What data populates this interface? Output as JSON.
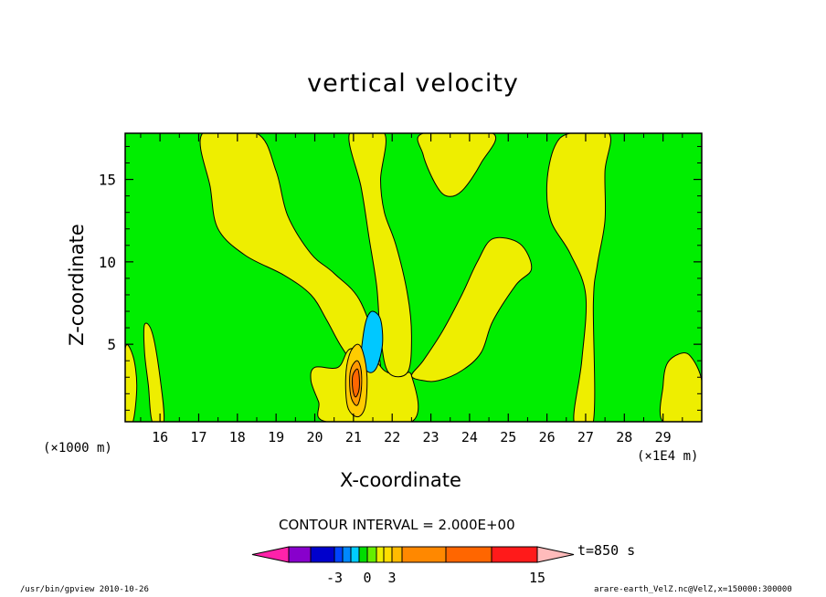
{
  "chart_data": {
    "type": "heatmap",
    "title": "vertical velocity",
    "xlabel": "X-coordinate",
    "ylabel": "Z-coordinate",
    "x_unit_left": "(×1000 m)",
    "x_unit_right": "(×1E4 m)",
    "xlim": [
      15.1,
      30
    ],
    "ylim": [
      0.3,
      17.8
    ],
    "x_ticks": [
      16,
      17,
      18,
      19,
      20,
      21,
      22,
      23,
      24,
      25,
      26,
      27,
      28,
      29
    ],
    "x_tick_labels": [
      "16",
      "17",
      "18",
      "19",
      "20",
      "21",
      "22",
      "23",
      "24",
      "25",
      "26",
      "27",
      "28",
      "29"
    ],
    "y_ticks": [
      5,
      10,
      15
    ],
    "y_tick_labels": [
      "5",
      "10",
      "15"
    ],
    "background_level_color": "#00ee00",
    "regions": [
      {
        "level": "0 to 2",
        "color": "#eeee00",
        "points": [
          [
            17.1,
            17.8
          ],
          [
            18.5,
            17.8
          ],
          [
            19,
            15.5
          ],
          [
            19.3,
            12.8
          ],
          [
            19.9,
            10.5
          ],
          [
            20.5,
            9.3
          ],
          [
            21.2,
            7.5
          ],
          [
            21.7,
            3.6
          ],
          [
            21.2,
            3.3
          ],
          [
            20.7,
            4.8
          ],
          [
            20.3,
            6.5
          ],
          [
            19.9,
            8
          ],
          [
            19.2,
            9.2
          ],
          [
            18.2,
            10.4
          ],
          [
            17.5,
            12
          ],
          [
            17.3,
            14.5
          ]
        ]
      },
      {
        "level": "0 to 2",
        "color": "#eeee00",
        "points": [
          [
            20,
            3.6
          ],
          [
            20.6,
            3.6
          ],
          [
            20.9,
            4.7
          ],
          [
            21.4,
            4.5
          ],
          [
            21.8,
            3.4
          ],
          [
            22.2,
            3.1
          ],
          [
            22.5,
            3.1
          ],
          [
            22.5,
            0.3
          ],
          [
            20.3,
            0.3
          ],
          [
            20.1,
            1.5
          ],
          [
            19.9,
            2.8
          ]
        ]
      },
      {
        "level": "0 to 2",
        "color": "#eeee00",
        "points": [
          [
            20.9,
            17.8
          ],
          [
            21.8,
            17.8
          ],
          [
            21.7,
            15
          ],
          [
            21.8,
            13
          ],
          [
            22.1,
            11
          ],
          [
            22.4,
            8
          ],
          [
            22.5,
            5.5
          ],
          [
            22.4,
            3.3
          ],
          [
            21.9,
            3.3
          ],
          [
            21.7,
            5.5
          ],
          [
            21.6,
            8.5
          ],
          [
            21.4,
            11.5
          ],
          [
            21.2,
            14.5
          ]
        ]
      },
      {
        "level": "0 to 2",
        "color": "#eeee00",
        "points": [
          [
            22.8,
            17.8
          ],
          [
            24.6,
            17.8
          ],
          [
            24.3,
            16
          ],
          [
            23.8,
            14.3
          ],
          [
            23.4,
            14
          ],
          [
            23.1,
            14.8
          ],
          [
            22.8,
            16.5
          ]
        ]
      },
      {
        "level": "0 to 2",
        "color": "#eeee00",
        "points": [
          [
            22.5,
            3.1
          ],
          [
            22.8,
            4
          ],
          [
            23.3,
            5.8
          ],
          [
            23.8,
            8
          ],
          [
            24.2,
            10
          ],
          [
            24.6,
            11.4
          ],
          [
            25.3,
            11.1
          ],
          [
            25.6,
            9.6
          ],
          [
            25.2,
            8.6
          ],
          [
            24.6,
            6.4
          ],
          [
            24.3,
            4.5
          ],
          [
            23.8,
            3.4
          ],
          [
            23.2,
            2.8
          ],
          [
            22.8,
            2.8
          ]
        ]
      },
      {
        "level": "0 to 2",
        "color": "#eeee00",
        "points": [
          [
            26.6,
            17.8
          ],
          [
            27.6,
            17.8
          ],
          [
            27.5,
            15.5
          ],
          [
            27.5,
            12.5
          ],
          [
            27.3,
            9.8
          ],
          [
            27.2,
            7.5
          ],
          [
            27.2,
            0.3
          ],
          [
            26.7,
            0.3
          ],
          [
            26.9,
            4
          ],
          [
            27,
            8
          ],
          [
            26.6,
            10.5
          ],
          [
            26.1,
            12.5
          ],
          [
            26,
            14.8
          ],
          [
            26.2,
            17
          ]
        ]
      },
      {
        "level": "0 to 2",
        "color": "#eeee00",
        "points": [
          [
            29,
            0.3
          ],
          [
            30,
            0.3
          ],
          [
            30,
            2.8
          ],
          [
            29.7,
            4.3
          ],
          [
            29.4,
            4.4
          ],
          [
            29.1,
            3.8
          ],
          [
            29,
            2.5
          ]
        ]
      },
      {
        "level": "0 to 2",
        "color": "#eeee00",
        "points": [
          [
            15.1,
            4.7
          ],
          [
            15.3,
            4.3
          ],
          [
            15.4,
            2.5
          ],
          [
            15.3,
            0.3
          ],
          [
            15.1,
            0.3
          ]
        ]
      },
      {
        "level": "0 to 2",
        "color": "#eeee00",
        "points": [
          [
            15.6,
            6.2
          ],
          [
            15.8,
            5.7
          ],
          [
            16,
            3
          ],
          [
            16.1,
            0.3
          ],
          [
            15.8,
            0.3
          ],
          [
            15.7,
            2.5
          ],
          [
            15.6,
            4.5
          ]
        ]
      },
      {
        "level": "-2 to 0",
        "color": "#00c8ff",
        "points": [
          [
            21.5,
            7
          ],
          [
            21.7,
            6.5
          ],
          [
            21.75,
            5
          ],
          [
            21.6,
            3.6
          ],
          [
            21.4,
            3.3
          ],
          [
            21.2,
            4
          ],
          [
            21.25,
            5.5
          ],
          [
            21.35,
            6.6
          ]
        ]
      },
      {
        "level": "2 to 4",
        "color": "#ffcc00",
        "points": [
          [
            21.1,
            5
          ],
          [
            21.25,
            4.5
          ],
          [
            21.35,
            3
          ],
          [
            21.3,
            1.2
          ],
          [
            21.1,
            0.6
          ],
          [
            20.85,
            1.2
          ],
          [
            20.8,
            3
          ],
          [
            20.9,
            4.4
          ]
        ]
      },
      {
        "level": "4 to 6",
        "color": "#ff9900",
        "points": [
          [
            21.1,
            4
          ],
          [
            21.2,
            3.4
          ],
          [
            21.2,
            2.2
          ],
          [
            21.1,
            1.3
          ],
          [
            20.95,
            1.7
          ],
          [
            20.9,
            2.8
          ],
          [
            20.95,
            3.6
          ]
        ]
      },
      {
        "level": "6 to 8",
        "color": "#ff6600",
        "points": [
          [
            21.1,
            3.5
          ],
          [
            21.15,
            3
          ],
          [
            21.14,
            2.2
          ],
          [
            21.05,
            1.8
          ],
          [
            20.98,
            2.3
          ],
          [
            20.98,
            3.1
          ]
        ]
      }
    ],
    "colorbar": {
      "segments": [
        {
          "color": "#ff22aa",
          "shape": "arrow-left"
        },
        {
          "color": "#8800cc"
        },
        {
          "color": "#0000cc"
        },
        {
          "color": "#0044ff"
        },
        {
          "color": "#0088ff"
        },
        {
          "color": "#00ccff"
        },
        {
          "color": "#00dd00"
        },
        {
          "color": "#66ee00"
        },
        {
          "color": "#eeee00"
        },
        {
          "color": "#ffdd00"
        },
        {
          "color": "#ffbb00"
        },
        {
          "color": "#ff8800"
        },
        {
          "color": "#ff6600"
        },
        {
          "color": "#ff1a1a"
        },
        {
          "color": "#ff7777"
        },
        {
          "color": "#ffbbbb",
          "shape": "arrow-right"
        }
      ],
      "tick_labels": [
        {
          "label": "-3",
          "at_boundary": 2
        },
        {
          "label": "0",
          "at_boundary": 6
        },
        {
          "label": "3",
          "at_boundary": 9
        },
        {
          "label": "15",
          "at_boundary": 15
        }
      ]
    }
  },
  "contour_interval": "CONTOUR INTERVAL = 2.000E+00",
  "time_label": "t=850 s",
  "footer_left": "/usr/bin/gpview  2010-10-26",
  "footer_right": "arare-earth_VelZ.nc@VelZ,x=150000:300000"
}
